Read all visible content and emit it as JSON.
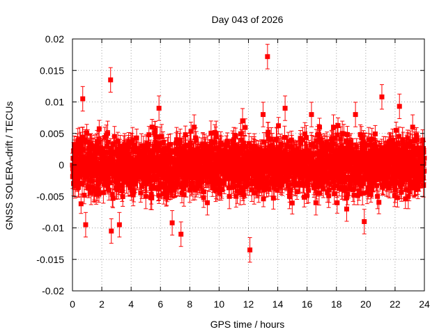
{
  "chart_data": {
    "type": "scatter",
    "title": "Day 043 of 2026",
    "xlabel": "GPS time / hours",
    "ylabel": "GNSS SOLERA-drift / TECUs",
    "xlim": [
      0,
      24
    ],
    "ylim": [
      -0.02,
      0.02
    ],
    "x_ticks": [
      0,
      2,
      4,
      6,
      8,
      10,
      12,
      14,
      16,
      18,
      20,
      22,
      24
    ],
    "x_tick_labels": [
      "0",
      "2",
      "4",
      "6",
      "8",
      "10",
      "12",
      "14",
      "16",
      "18",
      "20",
      "22",
      "24"
    ],
    "y_ticks": [
      0.02,
      0.015,
      0.01,
      0.005,
      0,
      -0.005,
      -0.01,
      -0.015,
      -0.02
    ],
    "y_tick_labels": [
      "0.02",
      "0.015",
      "0.01",
      "0.005",
      "0",
      "-0.005",
      "-0.01",
      "-0.015",
      "-0.02"
    ],
    "grid": true,
    "marker_color": "#ff0000",
    "marker": "square",
    "error_bars": true,
    "typical_error": 0.0015,
    "bulk_range": [
      -0.006,
      0.006
    ],
    "series": [
      {
        "x": [
          0.1,
          0.3,
          0.5,
          0.7,
          0.9,
          1.2,
          1.5,
          1.8,
          2.1,
          2.4,
          2.6,
          2.65,
          2.9,
          3.2,
          3.5,
          3.8,
          4.1,
          4.4,
          4.7,
          5.0,
          5.3,
          5.6,
          5.9,
          6.2,
          6.5,
          6.8,
          7.1,
          7.4,
          7.7,
          8.0,
          8.3,
          8.6,
          8.9,
          9.2,
          9.5,
          9.8,
          10.1,
          10.4,
          10.7,
          11.0,
          11.3,
          11.6,
          11.9,
          12.1,
          12.4,
          12.7,
          13.0,
          13.3,
          13.6,
          13.9,
          14.2,
          14.5,
          14.8,
          15.1,
          15.4,
          15.7,
          16.0,
          16.3,
          16.6,
          16.9,
          17.2,
          17.5,
          17.8,
          18.1,
          18.4,
          18.7,
          19.0,
          19.3,
          19.6,
          19.9,
          20.2,
          20.5,
          20.8,
          21.1,
          21.4,
          21.7,
          22.0,
          22.3,
          22.6,
          22.9,
          23.2,
          23.5,
          23.8
        ],
        "y": [
          0.001,
          -0.002,
          0.004,
          0.0105,
          -0.0095,
          0.003,
          -0.004,
          0.002,
          -0.001,
          0.005,
          0.0135,
          -0.0105,
          0.002,
          -0.0095,
          0.001,
          -0.003,
          0.004,
          -0.002,
          0.003,
          -0.005,
          0.002,
          -0.001,
          0.009,
          -0.003,
          0.001,
          -0.0092,
          0.004,
          -0.011,
          0.002,
          -0.004,
          0.006,
          -0.002,
          0.003,
          -0.006,
          0.001,
          0.005,
          -0.003,
          0.002,
          -0.005,
          0.004,
          -0.002,
          0.007,
          0.001,
          -0.0135,
          0.003,
          -0.004,
          0.008,
          0.0172,
          -0.003,
          0.004,
          -0.002,
          0.009,
          -0.005,
          0.002,
          -0.001,
          0.004,
          -0.003,
          0.008,
          -0.006,
          0.001,
          0.003,
          -0.004,
          0.006,
          -0.002,
          0.005,
          -0.007,
          0.002,
          0.008,
          -0.003,
          -0.009,
          0.004,
          0.002,
          -0.005,
          0.0108,
          -0.003,
          0.003,
          -0.004,
          0.0093,
          0.002,
          -0.005,
          0.006,
          -0.002,
          0.001
        ]
      }
    ]
  }
}
